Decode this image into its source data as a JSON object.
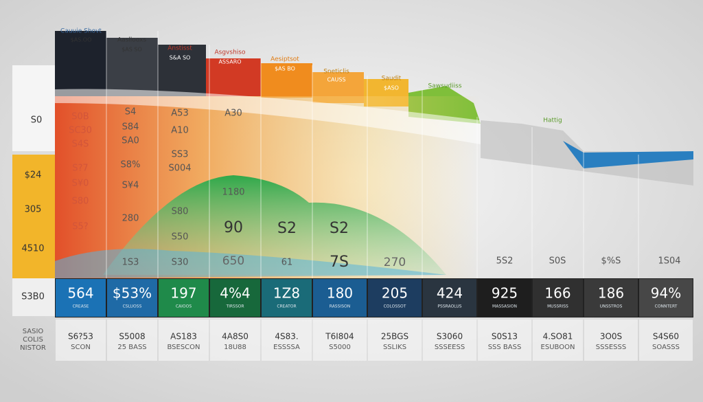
{
  "header_labels": [
    "Cauuie Shovt",
    "$AS.OO",
    "Aasllooxs",
    "$AS SO",
    "Anstisst",
    "S&A SO",
    "Asgvshiso",
    "ASSARO",
    "Aesiptsot",
    "$AS BO",
    "Sneticlis",
    "CAUSS",
    "Saudit",
    "$ASO",
    "Sawsudiiss",
    "Hattig"
  ],
  "left_labels": [
    "S0",
    "$24",
    "305",
    "4510",
    "S3B0"
  ],
  "cells": [
    "S0B",
    "SC30",
    "S4S",
    "S?7",
    "S¥0",
    "S80",
    "S5?",
    "S4",
    "S84",
    "SA0",
    "S8%",
    "S¥4",
    "280",
    "1S3",
    "A53",
    "A10",
    "SS3",
    "S004",
    "S80",
    "S50",
    "S30",
    "A30",
    "1180",
    "90",
    "650",
    "S2",
    "61",
    "S2",
    "7S",
    "270",
    "5S2",
    "S0S",
    "$%S",
    "1S04"
  ],
  "band": [
    {
      "value": "564",
      "sub": "CREASE"
    },
    {
      "value": "$53%",
      "sub": "CSLUOSS"
    },
    {
      "value": "197",
      "sub": "CAIOOS"
    },
    {
      "value": "4%4",
      "sub": "TIRSSOR"
    },
    {
      "value": "1Z8",
      "sub": "CREATOR"
    },
    {
      "value": "180",
      "sub": "RASSISON"
    },
    {
      "value": "205",
      "sub": "COLOSSOT"
    },
    {
      "value": "424",
      "sub": "PSSRAOLUS"
    },
    {
      "value": "925",
      "sub": "MASSASION"
    },
    {
      "value": "166",
      "sub": "MUSSRISS"
    },
    {
      "value": "186",
      "sub": "UNSSTROS"
    },
    {
      "value": "94%",
      "sub": "CONNTERT"
    }
  ],
  "bottom_left": [
    "SASIO",
    "COLIS",
    "NISTOR"
  ],
  "bottom": [
    [
      "S6?53",
      "SCON"
    ],
    [
      "S5008",
      "25 BASS"
    ],
    [
      "AS183",
      "BSESCON"
    ],
    [
      "4A8S0",
      "18U88"
    ],
    [
      "4S83.",
      "ESSSSA"
    ],
    [
      "T6I804",
      "S5000"
    ],
    [
      "25BGS",
      "SSLIKS"
    ],
    [
      "S3060",
      "SSSEESS"
    ],
    [
      "S0S13",
      "SSS BASS"
    ],
    [
      "4.SO81",
      "ESUBOON"
    ],
    [
      "3O0S",
      "SSSESSS"
    ],
    [
      "S4S60",
      "SOASSS"
    ]
  ]
}
